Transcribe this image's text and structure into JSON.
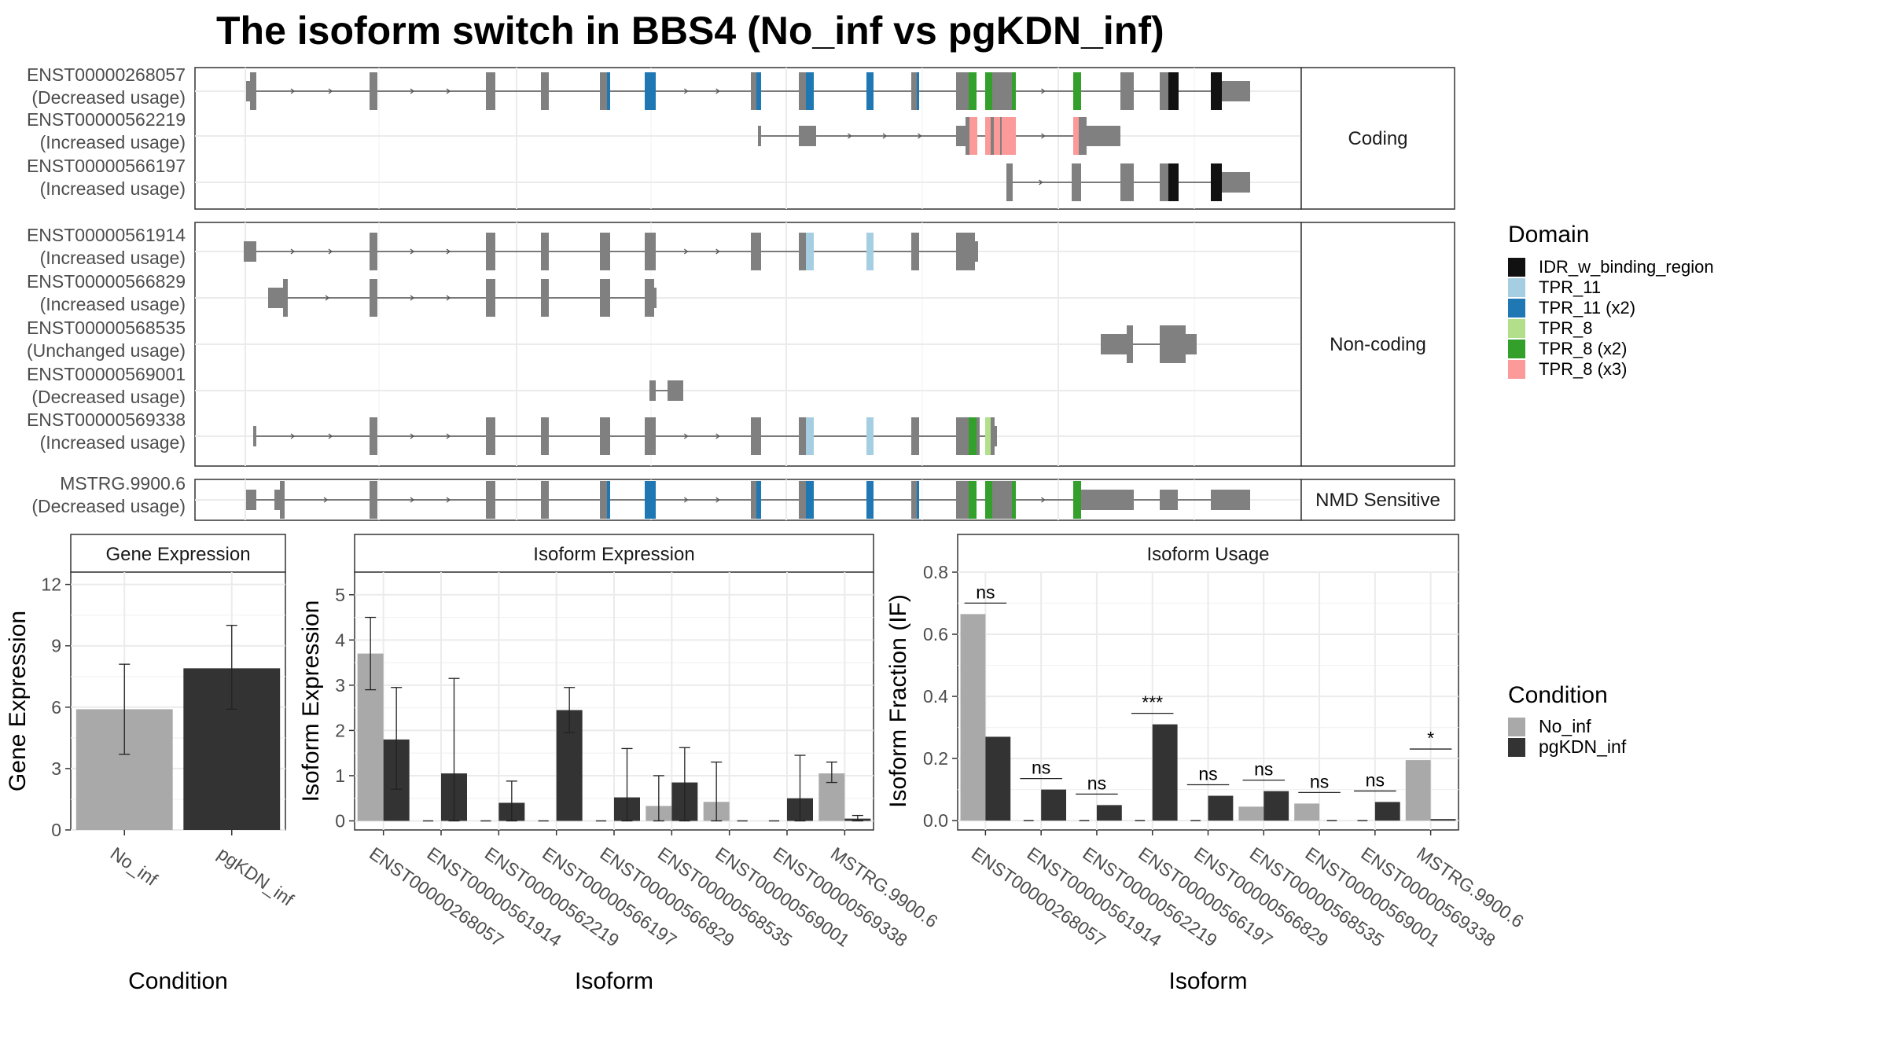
{
  "title": "The isoform switch in BBS4 (No_inf vs pgKDN_inf)",
  "domain_legend": {
    "title": "Domain",
    "items": [
      {
        "label": "IDR_w_binding_region",
        "color": "#111111"
      },
      {
        "label": "TPR_11",
        "color": "#a6cee3"
      },
      {
        "label": "TPR_11 (x2)",
        "color": "#1f78b4"
      },
      {
        "label": "TPR_8",
        "color": "#b2df8a"
      },
      {
        "label": "TPR_8 (x2)",
        "color": "#33a02c"
      },
      {
        "label": "TPR_8 (x3)",
        "color": "#fb9a99"
      }
    ]
  },
  "condition_legend": {
    "title": "Condition",
    "items": [
      {
        "label": "No_inf",
        "color": "#a9a9a9"
      },
      {
        "label": "pgKDN_inf",
        "color": "#333333"
      }
    ]
  },
  "chart_data": [
    {
      "type": "gene-structure",
      "facets": [
        "Coding",
        "Non-coding",
        "NMD Sensitive"
      ],
      "transcripts": [
        {
          "id": "ENST00000268057",
          "usage": "(Decreased usage)",
          "facet": "Coding"
        },
        {
          "id": "ENST00000562219",
          "usage": "(Increased usage)",
          "facet": "Coding"
        },
        {
          "id": "ENST00000566197",
          "usage": "(Increased usage)",
          "facet": "Coding"
        },
        {
          "id": "ENST00000561914",
          "usage": "(Increased usage)",
          "facet": "Non-coding"
        },
        {
          "id": "ENST00000566829",
          "usage": "(Increased usage)",
          "facet": "Non-coding"
        },
        {
          "id": "ENST00000568535",
          "usage": "(Unchanged usage)",
          "facet": "Non-coding"
        },
        {
          "id": "ENST00000569001",
          "usage": "(Decreased usage)",
          "facet": "Non-coding"
        },
        {
          "id": "ENST00000569338",
          "usage": "(Increased usage)",
          "facet": "Non-coding"
        },
        {
          "id": "MSTRG.9900.6",
          "usage": "(Decreased usage)",
          "facet": "NMD Sensitive"
        }
      ]
    },
    {
      "type": "bar",
      "title": "Gene Expression",
      "xlabel": "Condition",
      "ylabel": "Gene Expression",
      "ylim": [
        0,
        12.6
      ],
      "yticks": [
        0,
        3,
        6,
        9,
        12
      ],
      "categories": [
        "No_inf",
        "pgKDN_inf"
      ],
      "values": [
        5.9,
        7.9
      ],
      "error_low": [
        3.7,
        5.9
      ],
      "error_high": [
        8.1,
        10.0
      ]
    },
    {
      "type": "bar",
      "title": "Isoform Expression",
      "xlabel": "Isoform",
      "ylabel": "Isoform Expression",
      "ylim": [
        -0.2,
        5.5
      ],
      "yticks": [
        0,
        1,
        2,
        3,
        4,
        5
      ],
      "categories": [
        "ENST00000268057",
        "ENST00000561914",
        "ENST00000562219",
        "ENST00000566197",
        "ENST00000566829",
        "ENST00000568535",
        "ENST00000569001",
        "ENST00000569338",
        "MSTRG.9900.6"
      ],
      "series": [
        {
          "name": "No_inf",
          "values": [
            3.7,
            0,
            0,
            0,
            0,
            0.33,
            0.42,
            0,
            1.05
          ],
          "error_low": [
            2.9,
            null,
            null,
            null,
            null,
            0,
            0,
            null,
            0.85
          ],
          "error_high": [
            4.5,
            null,
            null,
            null,
            null,
            1.0,
            1.3,
            null,
            1.3
          ]
        },
        {
          "name": "pgKDN_inf",
          "values": [
            1.8,
            1.05,
            0.4,
            2.45,
            0.52,
            0.85,
            0,
            0.5,
            0.05
          ],
          "error_low": [
            0.7,
            0,
            0,
            1.95,
            0,
            0,
            null,
            0,
            0
          ],
          "error_high": [
            2.95,
            3.15,
            0.88,
            2.95,
            1.6,
            1.62,
            null,
            1.45,
            0.12
          ]
        }
      ]
    },
    {
      "type": "bar",
      "title": "Isoform Usage",
      "xlabel": "Isoform",
      "ylabel": "Isoform Fraction (IF)",
      "ylim": [
        -0.03,
        0.8
      ],
      "yticks": [
        0.0,
        0.2,
        0.4,
        0.6,
        0.8
      ],
      "categories": [
        "ENST00000268057",
        "ENST00000561914",
        "ENST00000562219",
        "ENST00000566197",
        "ENST00000566829",
        "ENST00000568535",
        "ENST00000569001",
        "ENST00000569338",
        "MSTRG.9900.6"
      ],
      "series": [
        {
          "name": "No_inf",
          "values": [
            0.665,
            0,
            0,
            0,
            0,
            0.045,
            0.055,
            0,
            0.195
          ]
        },
        {
          "name": "pgKDN_inf",
          "values": [
            0.27,
            0.1,
            0.05,
            0.31,
            0.08,
            0.095,
            0,
            0.06,
            0.005
          ]
        }
      ],
      "significance": [
        "ns",
        "ns",
        "ns",
        "***",
        "ns",
        "ns",
        "ns",
        "ns",
        "*"
      ]
    }
  ]
}
